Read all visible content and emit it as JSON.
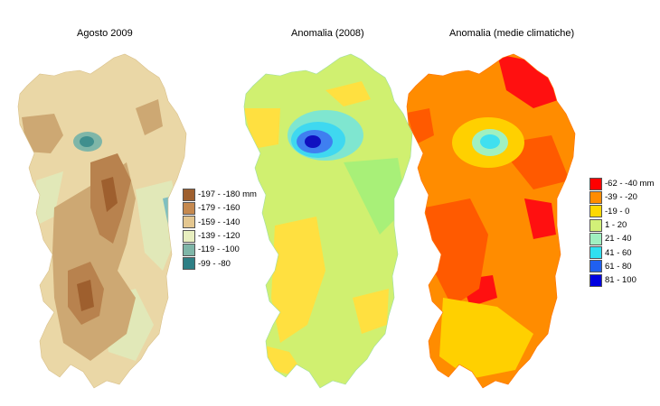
{
  "maps": [
    {
      "id": "agosto",
      "title": "Agosto 2009",
      "colors": {
        "base": "#ead7a6",
        "light": "#e1e8b8",
        "mid": "#cda873",
        "dark": "#b8824e",
        "darkest": "#9e5f2e",
        "teal": "#3f8f8e",
        "teal_light": "#7fb6a8",
        "edge": "#7fbfc0"
      }
    },
    {
      "id": "anomalia2008",
      "title": "Anomalia (2008)",
      "colors": {
        "base": "#d0f070",
        "yellow": "#ffe040",
        "green": "#a8f078",
        "aqua": "#7fe6d0",
        "cyan": "#3fd8f0",
        "blue": "#3f7ff0",
        "navy": "#1010c0"
      }
    },
    {
      "id": "anomalia_medie",
      "title": "Anomalia (medie climatiche)",
      "colors": {
        "base": "#ff8c00",
        "red_orange": "#ff5a00",
        "red": "#ff1010",
        "yellow": "#ffd000",
        "cyan": "#40e0f0",
        "aqua": "#a0f0c0"
      }
    }
  ],
  "legend_left": {
    "items": [
      {
        "label": "-197 - -180 mm",
        "color": "#9e5f2e"
      },
      {
        "label": "-179 - -160",
        "color": "#c5894f"
      },
      {
        "label": "-159 - -140",
        "color": "#e4c790"
      },
      {
        "label": "-139 - -120",
        "color": "#e8efc0"
      },
      {
        "label": "-119 - -100",
        "color": "#7fb6a8"
      },
      {
        "label": "-99 - -80",
        "color": "#2e7f85"
      }
    ]
  },
  "legend_right": {
    "items": [
      {
        "label": "-62 - -40 mm",
        "color": "#ff0000"
      },
      {
        "label": "-39 - -20",
        "color": "#ff8c00"
      },
      {
        "label": "-19 - 0",
        "color": "#ffd800"
      },
      {
        "label": "1 - 20",
        "color": "#d2f078"
      },
      {
        "label": "21 - 40",
        "color": "#a0f0c0"
      },
      {
        "label": "41 - 60",
        "color": "#30e0f0"
      },
      {
        "label": "61 - 80",
        "color": "#2060f0"
      },
      {
        "label": "81 - 100",
        "color": "#0000e0"
      }
    ]
  }
}
